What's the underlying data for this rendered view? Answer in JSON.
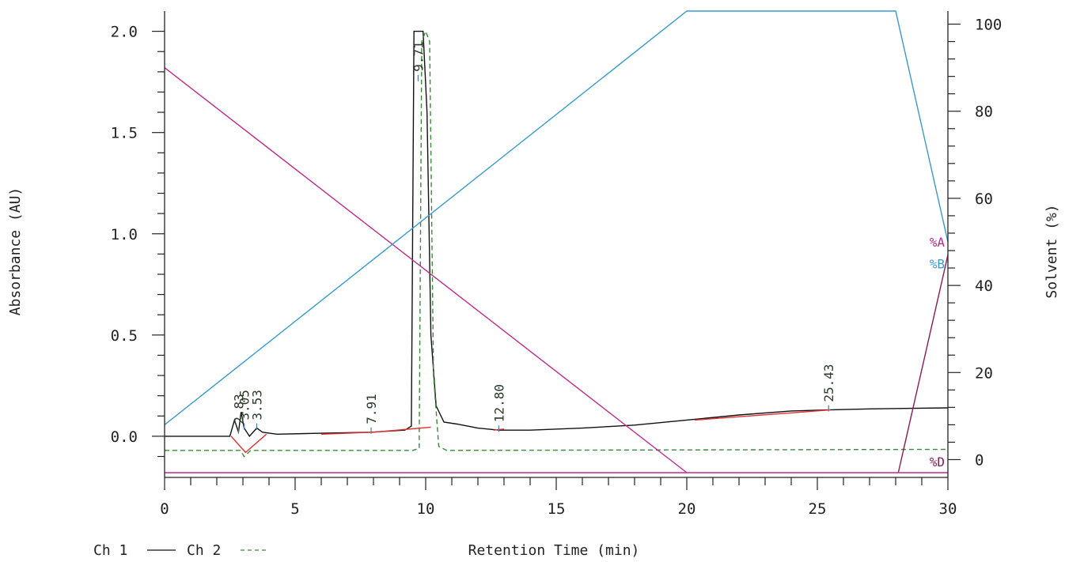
{
  "chart_data": {
    "type": "line",
    "xlabel": "Retention Time (min)",
    "ylabel": "Absorbance (AU)",
    "y2label": "Solvent (%)",
    "xlim": [
      0,
      30
    ],
    "ylim": [
      -0.18,
      2.1
    ],
    "y2lim": [
      -3,
      103
    ],
    "x_ticks": [
      "0",
      "5",
      "10",
      "15",
      "20",
      "25",
      "30"
    ],
    "x_tick_values": [
      0,
      5,
      10,
      15,
      20,
      25,
      30
    ],
    "y_ticks": [
      "0.0",
      "0.5",
      "1.0",
      "1.5",
      "2.0"
    ],
    "y_tick_values": [
      0,
      0.5,
      1.0,
      1.5,
      2.0
    ],
    "y2_ticks": [
      "0",
      "20",
      "40",
      "60",
      "80",
      "100"
    ],
    "y2_tick_values": [
      0,
      20,
      40,
      60,
      80,
      100
    ],
    "legend": [
      {
        "name": "Ch 1",
        "style": "solid",
        "color": "#111111"
      },
      {
        "name": "Ch 2",
        "style": "dashed",
        "color": "#3a8a3a"
      }
    ],
    "series": [
      {
        "name": "Ch 1",
        "axis": "left",
        "color": "#111111",
        "dash": false,
        "points": [
          [
            0,
            0.0
          ],
          [
            2.5,
            0.0
          ],
          [
            2.68,
            0.08
          ],
          [
            2.83,
            0.02
          ],
          [
            2.93,
            0.12
          ],
          [
            3.05,
            0.04
          ],
          [
            3.25,
            0.0
          ],
          [
            3.53,
            0.04
          ],
          [
            3.75,
            0.02
          ],
          [
            4.3,
            0.01
          ],
          [
            6.0,
            0.015
          ],
          [
            7.91,
            0.02
          ],
          [
            9.2,
            0.03
          ],
          [
            9.45,
            0.05
          ],
          [
            9.55,
            2.0
          ],
          [
            9.9,
            2.0
          ],
          [
            10.05,
            1.6
          ],
          [
            10.2,
            0.5
          ],
          [
            10.4,
            0.15
          ],
          [
            10.7,
            0.07
          ],
          [
            11.2,
            0.06
          ],
          [
            12.0,
            0.04
          ],
          [
            12.8,
            0.03
          ],
          [
            14.0,
            0.03
          ],
          [
            16.0,
            0.04
          ],
          [
            18.0,
            0.055
          ],
          [
            20.0,
            0.08
          ],
          [
            22.0,
            0.105
          ],
          [
            24.0,
            0.125
          ],
          [
            25.43,
            0.13
          ],
          [
            27.0,
            0.135
          ],
          [
            30.0,
            0.14
          ]
        ]
      },
      {
        "name": "Ch 2",
        "axis": "left",
        "color": "#3a8a3a",
        "dash": true,
        "points": [
          [
            0,
            -0.07
          ],
          [
            2.9,
            -0.07
          ],
          [
            3.05,
            -0.1
          ],
          [
            3.3,
            -0.07
          ],
          [
            9.5,
            -0.07
          ],
          [
            9.75,
            -0.06
          ],
          [
            9.85,
            1.95
          ],
          [
            10.0,
            2.0
          ],
          [
            10.15,
            1.95
          ],
          [
            10.3,
            0.3
          ],
          [
            10.5,
            -0.05
          ],
          [
            10.8,
            -0.07
          ],
          [
            30.0,
            -0.065
          ]
        ]
      },
      {
        "name": "%A",
        "axis": "right",
        "color": "#c02a8a",
        "dash": false,
        "points": [
          [
            0,
            90
          ],
          [
            20,
            -3
          ]
        ]
      },
      {
        "name": "%B",
        "axis": "right",
        "color": "#3a9ad0",
        "dash": false,
        "points": [
          [
            0,
            8
          ],
          [
            20,
            103
          ],
          [
            28,
            103
          ],
          [
            30,
            50
          ]
        ]
      },
      {
        "name": "%D",
        "axis": "right",
        "color": "#8a1a5a",
        "dash": false,
        "points": [
          [
            28.1,
            -3
          ],
          [
            30,
            47
          ]
        ]
      }
    ],
    "baseline_segments": [
      [
        [
          2.55,
          0.0
        ],
        [
          3.1,
          -0.08
        ],
        [
          3.9,
          0.01
        ]
      ],
      [
        [
          6.0,
          0.01
        ],
        [
          8.0,
          0.02
        ],
        [
          10.2,
          0.045
        ]
      ],
      [
        [
          12.6,
          0.03
        ],
        [
          13.0,
          0.035
        ]
      ],
      [
        [
          20.3,
          0.08
        ],
        [
          25.5,
          0.13
        ]
      ]
    ],
    "peak_labels": [
      {
        "text": "2.83",
        "x": 2.83
      },
      {
        "text": "3.05",
        "x": 3.05
      },
      {
        "text": "3.53",
        "x": 3.53
      },
      {
        "text": "7.91",
        "x": 7.91
      },
      {
        "text": "9.71",
        "x": 9.71
      },
      {
        "text": "12.80",
        "x": 12.8
      },
      {
        "text": "25.43",
        "x": 25.43
      }
    ],
    "gradient_tags": [
      {
        "text": "%A",
        "y2": 50,
        "color": "#c02a8a"
      },
      {
        "text": "%B",
        "y2": 45,
        "color": "#3a9ad0"
      },
      {
        "text": "%D",
        "y2": -0.5,
        "color": "#8a1a5a"
      }
    ],
    "colors": {
      "axis": "#222222",
      "baseline": "#e03030",
      "tick_marker": "#4a7ab0",
      "floor_line": "#c02a8a"
    }
  }
}
